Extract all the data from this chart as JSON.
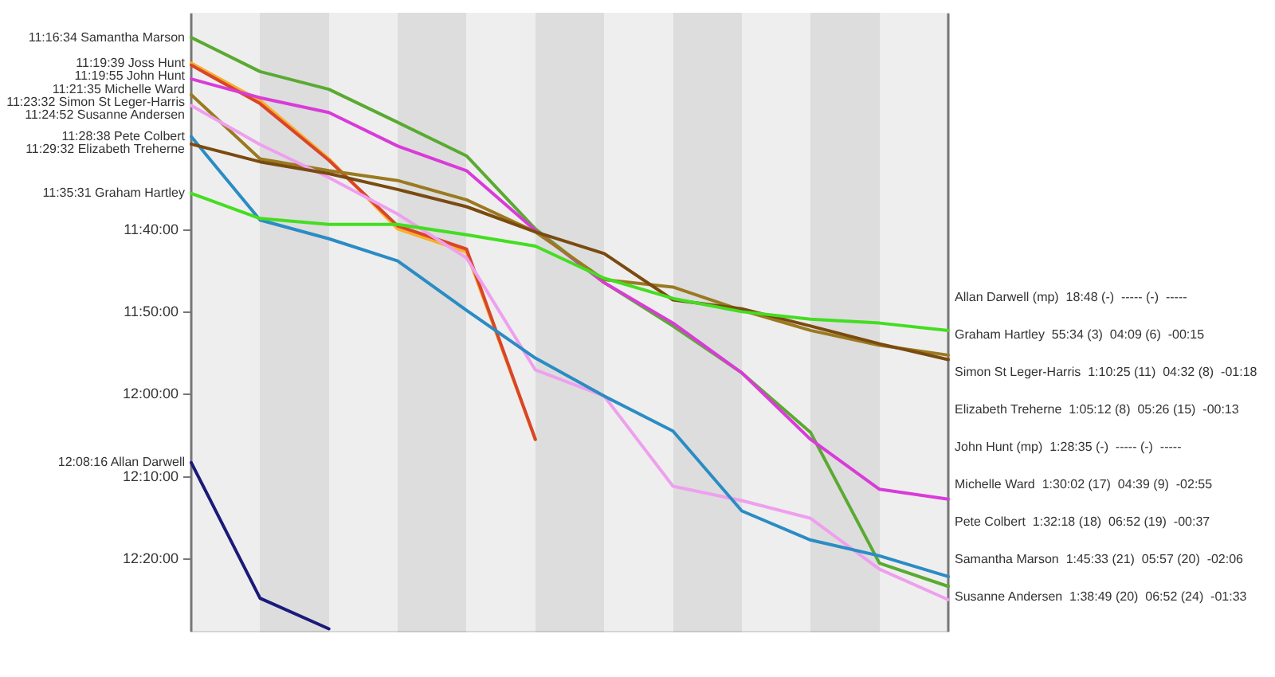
{
  "chart_data": {
    "type": "line",
    "categories": [
      null,
      null,
      null,
      null,
      null,
      null,
      null,
      null,
      null,
      null,
      null,
      null
    ],
    "series": [
      {
        "name": "11:16:34 Samantha Marson",
        "color": "#5aaa32",
        "values": [
          11.276,
          11.345,
          11.381,
          11.448,
          11.516,
          11.664,
          11.773,
          11.861,
          11.956,
          12.077,
          12.342,
          12.389
        ]
      },
      {
        "name": "11:19:39 Joss Hunt",
        "color": "#f7b02a",
        "values": [
          11.328,
          11.404,
          11.522,
          11.664,
          11.711,
          12.091,
          null,
          null,
          null,
          null,
          null,
          null
        ]
      },
      {
        "name": "11:19:55 John Hunt",
        "color": "#d9452a",
        "values": [
          11.332,
          11.41,
          11.525,
          11.658,
          11.705,
          12.091,
          null,
          null,
          null,
          null,
          null,
          null
        ]
      },
      {
        "name": "11:21:35 Michelle Ward",
        "color": "#d93bd9",
        "values": [
          11.36,
          11.398,
          11.428,
          11.496,
          11.546,
          11.667,
          11.773,
          11.855,
          11.956,
          12.091,
          12.192,
          12.212
        ]
      },
      {
        "name": "11:23:32 Simon St Leger-Harris",
        "color": "#9a7a20",
        "values": [
          11.392,
          11.522,
          11.546,
          11.566,
          11.605,
          11.67,
          11.767,
          11.782,
          11.829,
          11.87,
          11.9,
          11.92
        ]
      },
      {
        "name": "11:24:52 Susanne Andersen",
        "color": "#eea0ee",
        "values": [
          11.414,
          11.493,
          11.56,
          11.634,
          11.723,
          11.95,
          12.003,
          12.186,
          12.215,
          12.251,
          12.354,
          12.416
        ]
      },
      {
        "name": "11:28:38 Pete Colbert",
        "color": "#2b8cc4",
        "values": [
          11.477,
          11.646,
          11.684,
          11.729,
          11.829,
          11.926,
          12.003,
          12.074,
          12.236,
          12.295,
          12.327,
          12.369
        ]
      },
      {
        "name": "11:29:32 Elizabeth Treherne",
        "color": "#7a4a10",
        "values": [
          11.492,
          11.528,
          11.552,
          11.584,
          11.619,
          11.67,
          11.714,
          11.808,
          11.826,
          11.861,
          11.897,
          11.929
        ]
      },
      {
        "name": "11:35:31 Graham Hartley",
        "color": "#44dd22",
        "values": [
          11.592,
          11.643,
          11.655,
          11.655,
          11.676,
          11.699,
          11.764,
          11.805,
          11.832,
          11.847,
          11.855,
          11.87
        ]
      },
      {
        "name": "12:08:16 Allan Darwell",
        "color": "#1a1a7a",
        "values": [
          12.138,
          12.413,
          12.475,
          null,
          null,
          null,
          null,
          null,
          null,
          null,
          null,
          null
        ]
      }
    ],
    "ylim": [
      12.481,
      11.227
    ],
    "yticks": [
      {
        "value": 11.6667,
        "label": "11:40:00"
      },
      {
        "value": 11.8333,
        "label": "11:50:00"
      },
      {
        "value": 12,
        "label": "12:00:00"
      },
      {
        "value": 12.1667,
        "label": "12:10:00"
      },
      {
        "value": 12.3333,
        "label": "12:20:00"
      }
    ],
    "annotations": [
      "Allan Darwell (mp)  18:48 (-)  ----- (-)  -----",
      "Graham Hartley  55:34 (3)  04:09 (6)  -00:15",
      "Simon St Leger-Harris  1:10:25 (11)  04:32 (8)  -01:18",
      "Elizabeth Treherne  1:05:12 (8)  05:26 (15)  -00:13",
      "John Hunt (mp)  1:28:35 (-)  ----- (-)  -----",
      "Michelle Ward  1:30:02 (17)  04:39 (9)  -02:55",
      "Pete Colbert  1:32:18 (18)  06:52 (19)  -00:37",
      "Samantha Marson  1:45:33 (21)  05:57 (20)  -02:06",
      "Susanne Andersen  1:38:49 (20)  06:52 (24)  -01:33"
    ],
    "grid": false,
    "legend": false,
    "marker": "none",
    "line_style": "solid"
  }
}
